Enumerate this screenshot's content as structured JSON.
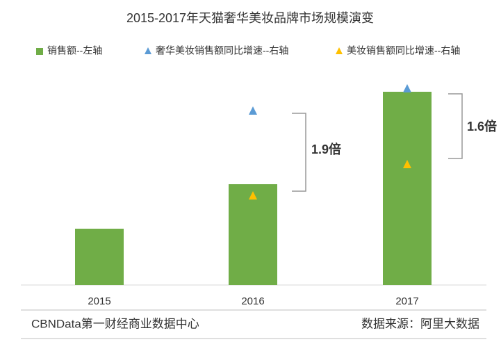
{
  "chart_data": {
    "type": "bar",
    "title": "2015-2017年天猫奢华美妆品牌市场规模演变",
    "categories": [
      "2015",
      "2016",
      "2017"
    ],
    "series": [
      {
        "name": "销售额--左轴",
        "type": "bar",
        "color": "#70ad47",
        "values": [
          81,
          145,
          278
        ]
      },
      {
        "name": "奢华美妆销售额同比增速--右轴",
        "type": "scatter",
        "axis": "y2",
        "color": "#5b9bd5",
        "values": [
          null,
          250,
          282
        ]
      },
      {
        "name": "美妆销售额同比增速--右轴",
        "type": "scatter",
        "axis": "y2",
        "color": "#ffc000",
        "values": [
          null,
          128,
          173
        ]
      }
    ],
    "ylim": [
      0,
      300
    ],
    "y2lim": [
      0,
      300
    ],
    "annotations": [
      "1.9倍",
      "1.6倍"
    ]
  },
  "footer": {
    "left": "CBNData第一财经商业数据中心",
    "right": "数据来源：阿里大数据"
  }
}
